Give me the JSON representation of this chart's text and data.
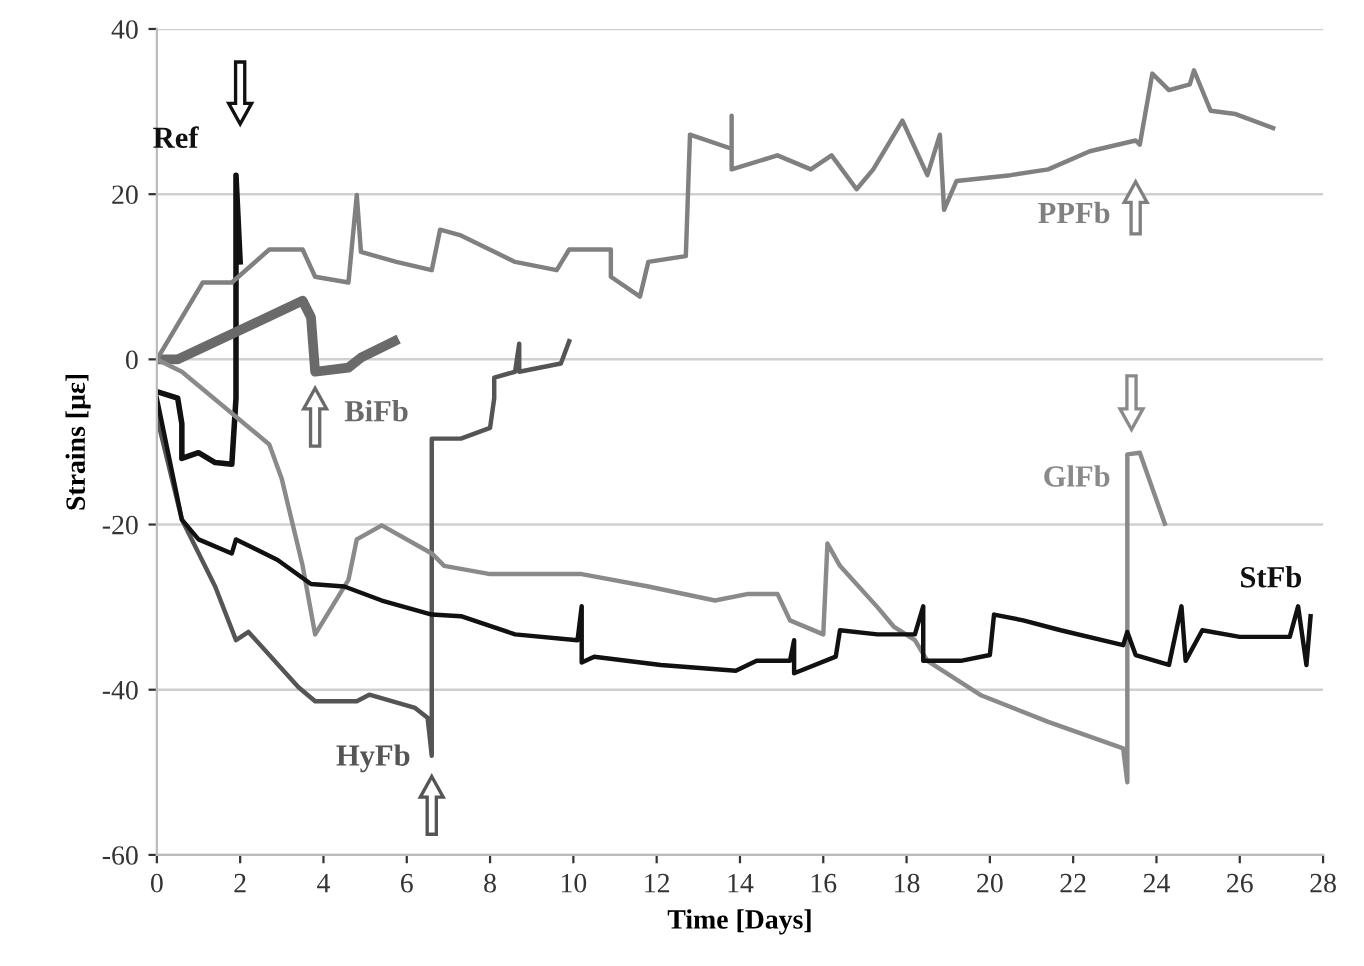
{
  "chart_data": {
    "type": "line",
    "xlabel": "Time [Days]",
    "ylabel": "Strains [µε]",
    "xlim": [
      0,
      28
    ],
    "xticks": [
      0,
      2,
      4,
      6,
      8,
      10,
      12,
      14,
      16,
      18,
      20,
      22,
      24,
      26,
      28
    ],
    "ylim": [
      -60,
      40
    ],
    "yticks": [
      -60,
      -40,
      -20,
      0,
      20,
      40
    ],
    "grid": "y",
    "marker": "none",
    "line_style": "solid",
    "series": [
      {
        "name": "Ref",
        "color": "#111111",
        "x": [
          0,
          0.5,
          0.6,
          0.6,
          1.0,
          1.4,
          1.8,
          1.9,
          1.9,
          2.0
        ],
        "values": [
          -3.9,
          -4.7,
          -7.8,
          -12,
          -11.3,
          -12.5,
          -12.7,
          -4.7,
          22.3,
          11.8
        ]
      },
      {
        "name": "BiFb",
        "color": "#6a6a6a",
        "x": [
          0,
          0.5,
          3.5,
          3.7,
          3.8,
          4.6,
          4.9,
          5.7
        ],
        "values": [
          0,
          0,
          7.1,
          5.1,
          -1.5,
          -1,
          0.2,
          2.2
        ]
      },
      {
        "name": "HyFb",
        "color": "#555555",
        "x": [
          0,
          0.6,
          1.4,
          1.9,
          2.2,
          3.4,
          3.8,
          4.8,
          5.1,
          6.2,
          6.5,
          6.6,
          6.6,
          7.0,
          7.3,
          8.0,
          8.1,
          8.1,
          8.6,
          8.7,
          8.7,
          9.7,
          9.9
        ],
        "values": [
          -7,
          -19.4,
          -27.5,
          -34,
          -33,
          -39.7,
          -41.4,
          -41.4,
          -40.6,
          -42.2,
          -43.4,
          -48,
          -9.6,
          -9.6,
          -9.6,
          -8.3,
          -4.7,
          -2.2,
          -1.5,
          1.9,
          -1.5,
          -0.5,
          2.2
        ]
      },
      {
        "name": "GlFb",
        "color": "#8a8a8a",
        "x": [
          0,
          0.6,
          2.7,
          3.0,
          3.5,
          3.8,
          4.6,
          4.8,
          5.4,
          6.6,
          6.9,
          8.0,
          10.2,
          11.8,
          13.4,
          14.2,
          14.9,
          15.2,
          16.0,
          16.1,
          16.4,
          17.3,
          17.7,
          18.2,
          18.5,
          19.8,
          21.4,
          23.2,
          23.3,
          23.3,
          23.6,
          24.2
        ],
        "values": [
          0,
          -1.5,
          -10.3,
          -14.5,
          -25,
          -33.3,
          -26.7,
          -21.8,
          -20.1,
          -23.5,
          -25,
          -26,
          -26,
          -27.5,
          -29.2,
          -28.4,
          -28.4,
          -31.6,
          -33.3,
          -22.3,
          -25,
          -30,
          -32.4,
          -34,
          -36.5,
          -40.7,
          -43.9,
          -47.1,
          -51.2,
          -11.5,
          -11.3,
          -19.9
        ]
      },
      {
        "name": "PPFb",
        "color": "#808080",
        "x": [
          0,
          1.1,
          1.8,
          2.7,
          3.5,
          3.8,
          4.6,
          4.8,
          4.9,
          5.75,
          6.6,
          6.8,
          7.3,
          8.6,
          9.6,
          9.9,
          10.9,
          10.9,
          11.6,
          11.8,
          12.7,
          12.8,
          13.8,
          13.8,
          13.8,
          14.9,
          15.7,
          16.2,
          16.8,
          17.2,
          17.9,
          18.5,
          18.8,
          18.9,
          19.2,
          20.5,
          21.4,
          22.4,
          23.5,
          23.6,
          23.9,
          24.3,
          24.8,
          24.9,
          25.3,
          25.9,
          26.8
        ],
        "values": [
          0,
          9.3,
          9.3,
          13.3,
          13.3,
          10,
          9.3,
          19.9,
          13,
          11.8,
          10.8,
          15.7,
          15,
          11.8,
          10.8,
          13.3,
          13.3,
          10,
          7.6,
          11.8,
          12.5,
          27.2,
          25.5,
          29.5,
          23,
          24.7,
          23,
          24.7,
          20.6,
          23,
          28.9,
          22.3,
          27.2,
          18.1,
          21.6,
          22.3,
          23,
          25.2,
          26.5,
          26,
          34.6,
          32.6,
          33.3,
          35,
          30.1,
          29.7,
          28
        ]
      },
      {
        "name": "StFb",
        "color": "#111111",
        "x": [
          0,
          0.6,
          1.0,
          1.8,
          1.9,
          2.9,
          3.7,
          4.5,
          5.4,
          6.6,
          7.3,
          8.6,
          10.1,
          10.2,
          10.2,
          10.5,
          12.1,
          13.9,
          14.4,
          15.2,
          15.3,
          15.3,
          16.3,
          16.4,
          17.3,
          18.2,
          18.4,
          18.4,
          19.3,
          20.0,
          20.1,
          20.8,
          21.7,
          23.2,
          23.3,
          23.5,
          24.3,
          24.6,
          24.7,
          25.1,
          26.0,
          27.2,
          27.4,
          27.6,
          27.7
        ],
        "values": [
          -4.7,
          -19.4,
          -21.8,
          -23.5,
          -21.8,
          -24.3,
          -27.2,
          -27.5,
          -29.2,
          -30.9,
          -31.1,
          -33.3,
          -34,
          -29.9,
          -36.7,
          -36,
          -37,
          -37.7,
          -36.5,
          -36.5,
          -34,
          -38,
          -36,
          -32.8,
          -33.3,
          -33.3,
          -29.9,
          -36.5,
          -36.5,
          -35.8,
          -30.9,
          -31.6,
          -32.8,
          -34.6,
          -33,
          -35.8,
          -37,
          -29.9,
          -36.5,
          -32.8,
          -33.6,
          -33.6,
          -29.9,
          -37,
          -31.1
        ]
      }
    ]
  }
}
